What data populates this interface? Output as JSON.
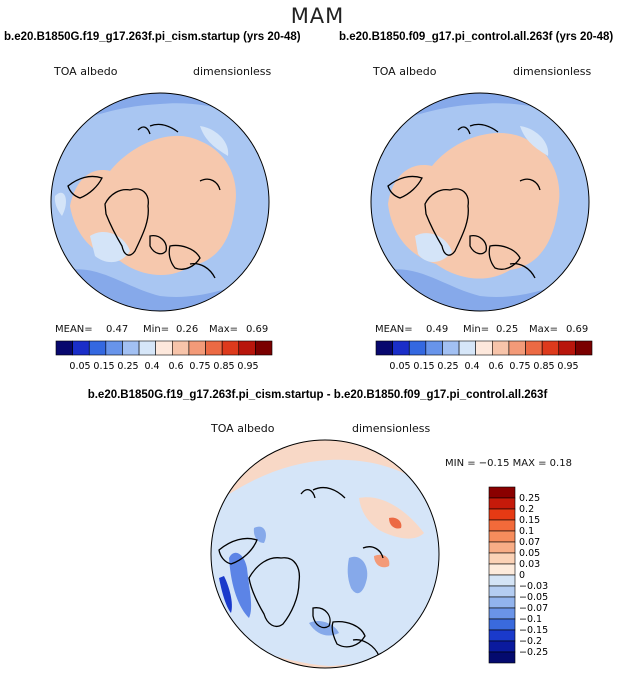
{
  "season": "MAM",
  "panels": [
    {
      "title": "b.e20.B1850G.f19_g17.263f.pi_cism.startup (yrs 20-48)",
      "variable": "TOA albedo",
      "units": "dimensionless",
      "stats": {
        "mean_label": "MEAN=",
        "mean": "0.47",
        "min_label": "Min=",
        "min": "0.26",
        "max_label": "Max=",
        "max": "0.69"
      }
    },
    {
      "title": "b.e20.B1850.f09_g17.pi_control.all.263f (yrs 20-48)",
      "variable": "TOA albedo",
      "units": "dimensionless",
      "stats": {
        "mean_label": "MEAN=",
        "mean": "0.49",
        "min_label": "Min=",
        "min": "0.25",
        "max_label": "Max=",
        "max": "0.69"
      }
    }
  ],
  "diff_panel": {
    "title": "b.e20.B1850G.f19_g17.263f.pi_cism.startup - b.e20.B1850.f09_g17.pi_control.all.263f",
    "variable": "TOA albedo",
    "units": "dimensionless",
    "minmax_text": "MIN =  −0.15 MAX =  0.18"
  },
  "colorbar_abs": {
    "labels": [
      "0.05",
      "0.15",
      "0.25",
      "0.4",
      "0.6",
      "0.75",
      "0.85",
      "0.95"
    ],
    "colors": [
      "#08086e",
      "#1a2ec8",
      "#3468e0",
      "#6894ea",
      "#a2c0f2",
      "#d6e6f8",
      "#fde8dc",
      "#f7c4aa",
      "#f39a78",
      "#ec6a44",
      "#dd3a1c",
      "#b8160c",
      "#7a0000"
    ]
  },
  "colorbar_diff": {
    "labels": [
      "0.25",
      "0.2",
      "0.15",
      "0.1",
      "0.07",
      "0.05",
      "0.03",
      "0",
      "−0.03",
      "−0.05",
      "−0.07",
      "−0.1",
      "−0.15",
      "−0.2",
      "−0.25"
    ],
    "colors": [
      "#8a0000",
      "#c51a0a",
      "#e63a14",
      "#f26a3a",
      "#f68c5c",
      "#f8ad86",
      "#fbd2b6",
      "#fdebdc",
      "#d4e4f6",
      "#b4cdf2",
      "#92b4ee",
      "#6a94e8",
      "#3a6add",
      "#1a3acb",
      "#0a1a9e",
      "#040a6e"
    ]
  },
  "map_colors": {
    "ocean_blue": "#a9c6f2",
    "light_blue": "#d4e4f8",
    "mid_blue": "#86a9ea",
    "peach": "#f6c8ad",
    "diff_light": "#d5e5f8",
    "diff_pink": "#f8d8c6",
    "diff_blue": "#5c84e6"
  }
}
